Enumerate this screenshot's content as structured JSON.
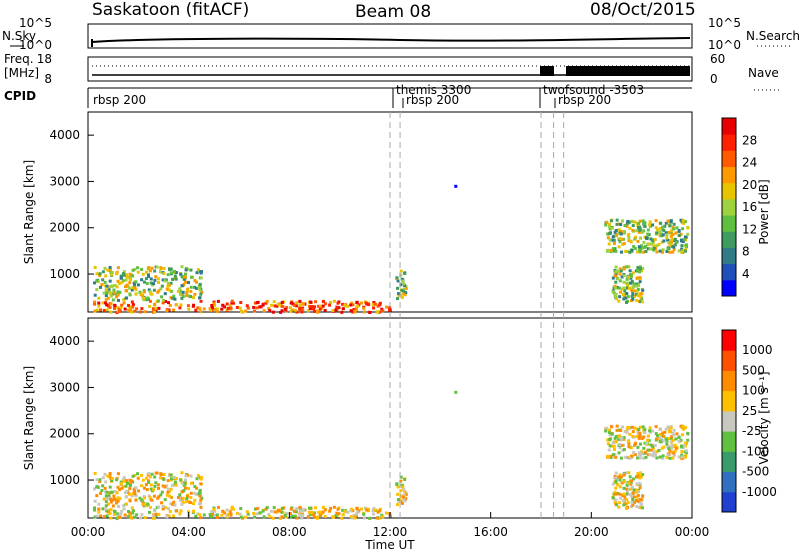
{
  "header": {
    "station": "Saskatoon (fitACF)",
    "beam": "Beam 08",
    "date": "08/Oct/2015"
  },
  "side_labels": {
    "nsky": "N.Sky",
    "nsearch": "N.Search",
    "freq_top": "Freq.",
    "freq_unit": "[MHz]",
    "nave": "Nave",
    "cpid": "CPID",
    "noise_ticks_left": [
      "10^5",
      "10^0"
    ],
    "noise_ticks_right": [
      "10^5",
      "10^0"
    ],
    "freq_ticks": [
      "18",
      "8"
    ],
    "nave_ticks": [
      "60",
      "0"
    ]
  },
  "cpid_labels": [
    "rbsp 200",
    "themis 3300",
    "rbsp 200",
    "twofsound -3503",
    "rbsp 200"
  ],
  "time_axis": {
    "title": "Time UT",
    "ticks": [
      "00:00",
      "04:00",
      "08:00",
      "12:00",
      "16:00",
      "20:00",
      "00:00"
    ]
  },
  "panels": {
    "ylabel": "Slant Range [km]",
    "yticks": [
      "4000",
      "3000",
      "2000",
      "1000"
    ]
  },
  "power_bar": {
    "label": "Power [dB]",
    "ticks": [
      "28",
      "24",
      "20",
      "16",
      "12",
      "8",
      "4"
    ],
    "colors": [
      "#0000ff",
      "#1f4fb8",
      "#2f7b88",
      "#3f9b5f",
      "#5fbf3f",
      "#9fd23f",
      "#e8c400",
      "#ff9900",
      "#ff5a00",
      "#ff2000",
      "#e80000"
    ]
  },
  "velocity_bar": {
    "label": "Velocity [m s⁻¹]",
    "ticks": [
      "1000",
      "500",
      "100",
      "25",
      "-25",
      "-100",
      "-500",
      "-1000"
    ],
    "colors": [
      "#2040d0",
      "#3070c0",
      "#3a9a6a",
      "#60c040",
      "#c8c8c0",
      "#ffc000",
      "#ff8c00",
      "#ff5000",
      "#ff0000"
    ]
  },
  "chart_data": {
    "type": "heatmap",
    "x_range_hours": [
      0,
      24
    ],
    "y_range_km": [
      180,
      4500
    ],
    "marker_times_hours": [
      12.0,
      12.4,
      18.0,
      18.5,
      18.9
    ],
    "power_clusters": [
      {
        "t0": 0.2,
        "t1": 12.0,
        "r0": 200,
        "r1": 450,
        "level": "high"
      },
      {
        "t0": 0.2,
        "t1": 4.5,
        "r0": 450,
        "r1": 1200,
        "level": "mid"
      },
      {
        "t0": 12.2,
        "t1": 12.6,
        "r0": 500,
        "r1": 1100,
        "level": "mid"
      },
      {
        "t0": 14.5,
        "t1": 14.6,
        "r0": 2850,
        "r1": 2950,
        "level": "low"
      },
      {
        "t0": 20.5,
        "t1": 23.8,
        "r0": 1500,
        "r1": 2200,
        "level": "mid"
      },
      {
        "t0": 20.8,
        "t1": 22.0,
        "r0": 400,
        "r1": 1200,
        "level": "mid"
      }
    ]
  }
}
